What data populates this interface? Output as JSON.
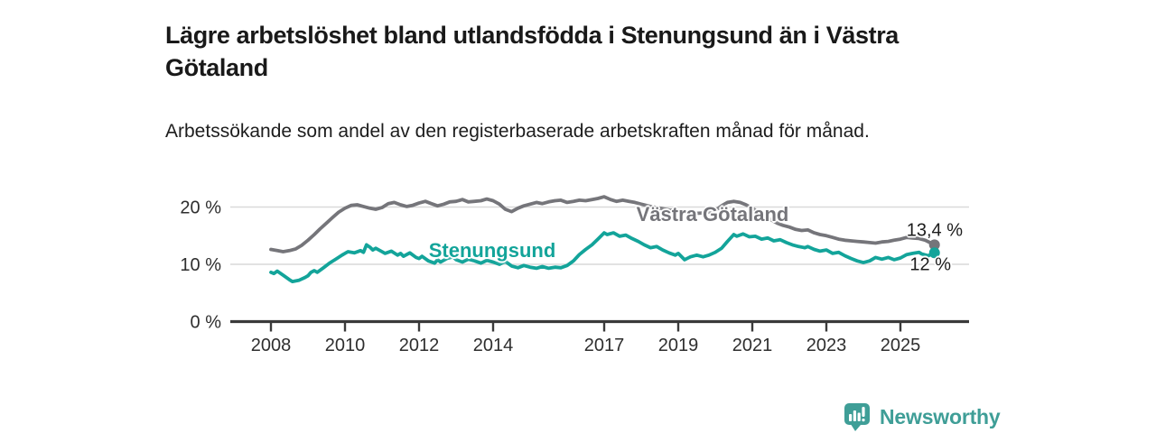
{
  "header": {
    "title": "Lägre arbetslöshet bland utlandsfödda i Stenungsund än i Västra Götaland",
    "subtitle": "Arbetssökande som andel av den registerbaserade arbetskraften månad för månad."
  },
  "footer": {
    "brand": "Newsworthy",
    "brand_color": "#3f9e97",
    "logo_icon": "bar-chart-speech-bubble-icon"
  },
  "chart_data": {
    "type": "line",
    "title": "Lägre arbetslöshet bland utlandsfödda i Stenungsund än i Västra Götaland",
    "subtitle": "Arbetssökande som andel av den registerbaserade arbetskraften månad för månad.",
    "unit": "%",
    "grid": "horizontal",
    "legend_position": "inline-labels",
    "xlim": [
      2008,
      2026.1
    ],
    "ylim": [
      0,
      24
    ],
    "x_ticks": [
      {
        "v": 2008,
        "label": "2008"
      },
      {
        "v": 2010,
        "label": "2010"
      },
      {
        "v": 2012,
        "label": "2012"
      },
      {
        "v": 2014,
        "label": "2014"
      },
      {
        "v": 2017,
        "label": "2017"
      },
      {
        "v": 2019,
        "label": "2019"
      },
      {
        "v": 2021,
        "label": "2021"
      },
      {
        "v": 2023,
        "label": "2023"
      },
      {
        "v": 2025,
        "label": "2025"
      }
    ],
    "y_ticks": [
      {
        "v": 0,
        "label": "0 %"
      },
      {
        "v": 10,
        "label": "10 %"
      },
      {
        "v": 20,
        "label": "20 %"
      }
    ],
    "colors": {
      "grid": "#d9d9d9",
      "axis": "#3a3a3a",
      "tick_text": "#2e2e2e",
      "annotation_text": "#1c1c1c"
    },
    "series": [
      {
        "name": "Västra Götaland",
        "color": "#75757a",
        "end_value": 13.4,
        "end_label": "13,4 %",
        "points": [
          [
            2008.0,
            12.6
          ],
          [
            2008.17,
            12.4
          ],
          [
            2008.33,
            12.2
          ],
          [
            2008.5,
            12.4
          ],
          [
            2008.67,
            12.7
          ],
          [
            2008.83,
            13.3
          ],
          [
            2009.0,
            14.2
          ],
          [
            2009.17,
            15.2
          ],
          [
            2009.33,
            16.2
          ],
          [
            2009.5,
            17.2
          ],
          [
            2009.67,
            18.2
          ],
          [
            2009.83,
            19.1
          ],
          [
            2010.0,
            19.8
          ],
          [
            2010.17,
            20.3
          ],
          [
            2010.33,
            20.4
          ],
          [
            2010.5,
            20.1
          ],
          [
            2010.67,
            19.8
          ],
          [
            2010.83,
            19.6
          ],
          [
            2011.0,
            19.9
          ],
          [
            2011.17,
            20.6
          ],
          [
            2011.33,
            20.8
          ],
          [
            2011.5,
            20.4
          ],
          [
            2011.67,
            20.1
          ],
          [
            2011.83,
            20.3
          ],
          [
            2012.0,
            20.7
          ],
          [
            2012.17,
            21.0
          ],
          [
            2012.33,
            20.6
          ],
          [
            2012.5,
            20.2
          ],
          [
            2012.67,
            20.5
          ],
          [
            2012.83,
            20.9
          ],
          [
            2013.0,
            21.0
          ],
          [
            2013.17,
            21.3
          ],
          [
            2013.33,
            20.9
          ],
          [
            2013.5,
            21.0
          ],
          [
            2013.67,
            21.1
          ],
          [
            2013.83,
            21.4
          ],
          [
            2014.0,
            21.1
          ],
          [
            2014.17,
            20.5
          ],
          [
            2014.33,
            19.6
          ],
          [
            2014.5,
            19.2
          ],
          [
            2014.67,
            19.8
          ],
          [
            2014.83,
            20.2
          ],
          [
            2015.0,
            20.5
          ],
          [
            2015.17,
            20.8
          ],
          [
            2015.33,
            20.6
          ],
          [
            2015.5,
            20.9
          ],
          [
            2015.67,
            21.1
          ],
          [
            2015.83,
            21.2
          ],
          [
            2016.0,
            20.8
          ],
          [
            2016.17,
            21.0
          ],
          [
            2016.33,
            21.2
          ],
          [
            2016.5,
            21.1
          ],
          [
            2016.67,
            21.3
          ],
          [
            2016.83,
            21.5
          ],
          [
            2017.0,
            21.8
          ],
          [
            2017.17,
            21.3
          ],
          [
            2017.33,
            21.0
          ],
          [
            2017.5,
            21.2
          ],
          [
            2017.67,
            21.0
          ],
          [
            2017.83,
            20.8
          ],
          [
            2018.0,
            20.5
          ],
          [
            2018.25,
            20.1
          ],
          [
            2018.5,
            19.8
          ],
          [
            2018.75,
            19.5
          ],
          [
            2019.0,
            19.3
          ],
          [
            2019.25,
            19.1
          ],
          [
            2019.5,
            18.9
          ],
          [
            2019.75,
            19.0
          ],
          [
            2020.0,
            19.4
          ],
          [
            2020.17,
            20.2
          ],
          [
            2020.33,
            20.8
          ],
          [
            2020.5,
            21.0
          ],
          [
            2020.67,
            20.8
          ],
          [
            2020.83,
            20.4
          ],
          [
            2021.0,
            19.8
          ],
          [
            2021.17,
            19.1
          ],
          [
            2021.33,
            18.4
          ],
          [
            2021.5,
            17.8
          ],
          [
            2021.67,
            17.2
          ],
          [
            2021.83,
            16.8
          ],
          [
            2022.0,
            16.5
          ],
          [
            2022.17,
            16.1
          ],
          [
            2022.33,
            15.9
          ],
          [
            2022.5,
            16.0
          ],
          [
            2022.67,
            15.5
          ],
          [
            2022.83,
            15.2
          ],
          [
            2023.0,
            15.0
          ],
          [
            2023.17,
            14.7
          ],
          [
            2023.33,
            14.4
          ],
          [
            2023.5,
            14.2
          ],
          [
            2023.67,
            14.1
          ],
          [
            2023.83,
            14.0
          ],
          [
            2024.0,
            13.9
          ],
          [
            2024.17,
            13.8
          ],
          [
            2024.33,
            13.7
          ],
          [
            2024.5,
            13.9
          ],
          [
            2024.67,
            14.0
          ],
          [
            2024.83,
            14.2
          ],
          [
            2025.0,
            14.4
          ],
          [
            2025.17,
            14.7
          ],
          [
            2025.33,
            14.6
          ],
          [
            2025.5,
            14.5
          ],
          [
            2025.67,
            14.2
          ],
          [
            2025.83,
            13.7
          ],
          [
            2025.92,
            13.4
          ]
        ]
      },
      {
        "name": "Stenungsund",
        "color": "#13a49a",
        "end_value": 12,
        "end_label": "12 %",
        "points": [
          [
            2008.0,
            8.6
          ],
          [
            2008.08,
            8.4
          ],
          [
            2008.17,
            8.8
          ],
          [
            2008.33,
            8.1
          ],
          [
            2008.5,
            7.3
          ],
          [
            2008.58,
            7.0
          ],
          [
            2008.75,
            7.2
          ],
          [
            2008.92,
            7.7
          ],
          [
            2009.0,
            8.0
          ],
          [
            2009.08,
            8.6
          ],
          [
            2009.17,
            8.9
          ],
          [
            2009.25,
            8.6
          ],
          [
            2009.42,
            9.4
          ],
          [
            2009.58,
            10.2
          ],
          [
            2009.75,
            10.9
          ],
          [
            2009.92,
            11.6
          ],
          [
            2010.08,
            12.2
          ],
          [
            2010.25,
            12.0
          ],
          [
            2010.42,
            12.4
          ],
          [
            2010.5,
            12.1
          ],
          [
            2010.58,
            13.4
          ],
          [
            2010.67,
            13.0
          ],
          [
            2010.75,
            12.5
          ],
          [
            2010.83,
            12.8
          ],
          [
            2011.0,
            12.2
          ],
          [
            2011.08,
            11.9
          ],
          [
            2011.25,
            12.3
          ],
          [
            2011.42,
            11.6
          ],
          [
            2011.5,
            11.9
          ],
          [
            2011.58,
            11.4
          ],
          [
            2011.75,
            12.0
          ],
          [
            2011.92,
            11.2
          ],
          [
            2012.0,
            11.0
          ],
          [
            2012.08,
            11.4
          ],
          [
            2012.25,
            10.6
          ],
          [
            2012.42,
            10.2
          ],
          [
            2012.5,
            10.8
          ],
          [
            2012.58,
            10.4
          ],
          [
            2012.75,
            11.0
          ],
          [
            2012.92,
            11.3
          ],
          [
            2013.0,
            10.8
          ],
          [
            2013.17,
            10.4
          ],
          [
            2013.33,
            10.9
          ],
          [
            2013.5,
            10.6
          ],
          [
            2013.67,
            10.2
          ],
          [
            2013.83,
            10.7
          ],
          [
            2014.0,
            10.4
          ],
          [
            2014.17,
            10.0
          ],
          [
            2014.33,
            10.5
          ],
          [
            2014.5,
            9.7
          ],
          [
            2014.67,
            9.4
          ],
          [
            2014.83,
            9.8
          ],
          [
            2015.0,
            9.5
          ],
          [
            2015.17,
            9.3
          ],
          [
            2015.33,
            9.6
          ],
          [
            2015.5,
            9.3
          ],
          [
            2015.67,
            9.5
          ],
          [
            2015.83,
            9.4
          ],
          [
            2016.0,
            9.8
          ],
          [
            2016.17,
            10.6
          ],
          [
            2016.33,
            11.7
          ],
          [
            2016.5,
            12.6
          ],
          [
            2016.67,
            13.4
          ],
          [
            2016.83,
            14.4
          ],
          [
            2017.0,
            15.5
          ],
          [
            2017.08,
            15.2
          ],
          [
            2017.25,
            15.5
          ],
          [
            2017.42,
            14.9
          ],
          [
            2017.58,
            15.1
          ],
          [
            2017.75,
            14.5
          ],
          [
            2017.92,
            14.0
          ],
          [
            2018.08,
            13.4
          ],
          [
            2018.25,
            12.9
          ],
          [
            2018.42,
            13.1
          ],
          [
            2018.58,
            12.5
          ],
          [
            2018.75,
            12.0
          ],
          [
            2018.92,
            11.6
          ],
          [
            2019.0,
            11.9
          ],
          [
            2019.17,
            10.8
          ],
          [
            2019.33,
            11.3
          ],
          [
            2019.5,
            11.6
          ],
          [
            2019.67,
            11.3
          ],
          [
            2019.83,
            11.6
          ],
          [
            2020.0,
            12.1
          ],
          [
            2020.17,
            12.8
          ],
          [
            2020.33,
            14.0
          ],
          [
            2020.5,
            15.2
          ],
          [
            2020.58,
            14.9
          ],
          [
            2020.75,
            15.3
          ],
          [
            2020.92,
            14.8
          ],
          [
            2021.08,
            14.9
          ],
          [
            2021.25,
            14.4
          ],
          [
            2021.42,
            14.6
          ],
          [
            2021.58,
            14.1
          ],
          [
            2021.75,
            14.3
          ],
          [
            2021.92,
            13.8
          ],
          [
            2022.08,
            13.4
          ],
          [
            2022.25,
            13.1
          ],
          [
            2022.42,
            12.9
          ],
          [
            2022.5,
            13.1
          ],
          [
            2022.67,
            12.6
          ],
          [
            2022.83,
            12.3
          ],
          [
            2023.0,
            12.5
          ],
          [
            2023.17,
            11.9
          ],
          [
            2023.33,
            12.1
          ],
          [
            2023.5,
            11.5
          ],
          [
            2023.67,
            11.0
          ],
          [
            2023.83,
            10.6
          ],
          [
            2024.0,
            10.3
          ],
          [
            2024.17,
            10.6
          ],
          [
            2024.33,
            11.2
          ],
          [
            2024.5,
            10.9
          ],
          [
            2024.67,
            11.2
          ],
          [
            2024.83,
            10.8
          ],
          [
            2025.0,
            11.1
          ],
          [
            2025.17,
            11.7
          ],
          [
            2025.33,
            11.9
          ],
          [
            2025.5,
            12.1
          ],
          [
            2025.58,
            11.8
          ],
          [
            2025.75,
            11.5
          ],
          [
            2025.92,
            12.0
          ]
        ]
      }
    ]
  }
}
